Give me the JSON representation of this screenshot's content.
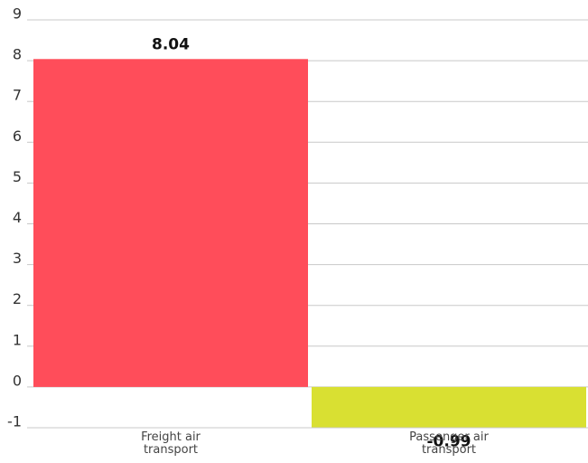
{
  "chart_data": {
    "type": "bar",
    "categories": [
      "Freight air transport",
      "Passenger air transport"
    ],
    "values": [
      8.04,
      -0.99
    ],
    "value_labels": [
      "8.04",
      "-0.99"
    ],
    "colors": [
      "#ff4d5a",
      "#d9e032"
    ],
    "ylim": [
      -1,
      9
    ],
    "yticks": [
      -1,
      0,
      1,
      2,
      3,
      4,
      5,
      6,
      7,
      8,
      9
    ],
    "grid": true
  }
}
